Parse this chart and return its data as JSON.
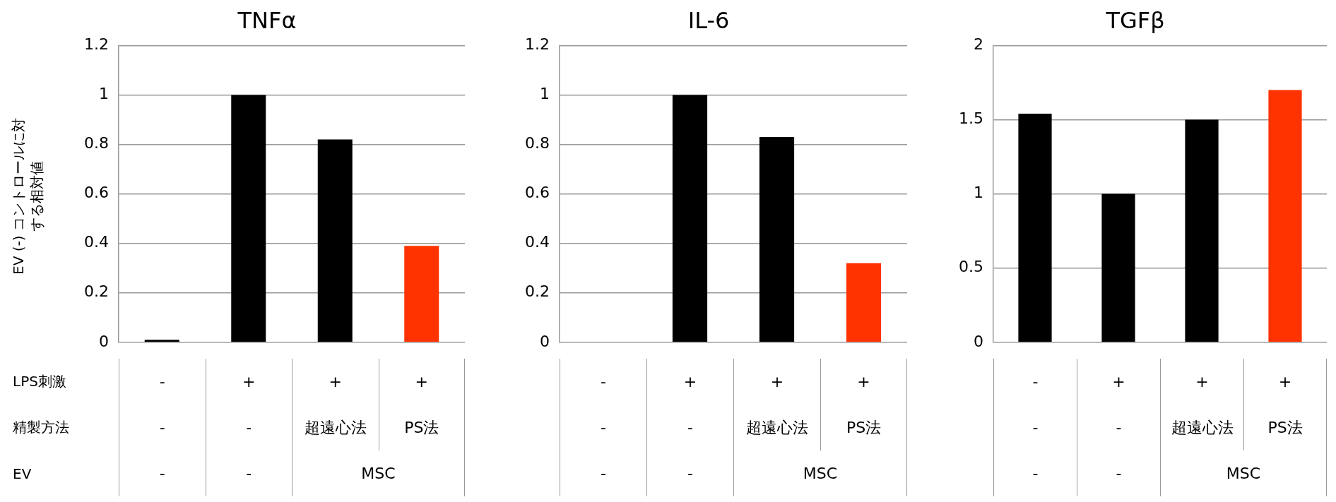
{
  "chart_data": [
    {
      "type": "bar",
      "title": "TNFα",
      "ylabel": "EV (-) コントロールに対する相対値",
      "categories": [
        null,
        null,
        null,
        null
      ],
      "values": [
        0.01,
        1,
        0.82,
        0.39
      ],
      "colors": [
        "#000000",
        "#000000",
        "#000000",
        "#ff3300"
      ],
      "ylim": [
        0,
        1.2
      ],
      "yticks": [
        0,
        0.2,
        0.4,
        0.6,
        0.8,
        1,
        1.2
      ],
      "grid": "y",
      "legend": false,
      "annotations": [
        "LPS刺激",
        "精製方法",
        "EV",
        "-",
        "+",
        "+",
        "+",
        "-",
        "-",
        "超遠心法",
        "PS法",
        "-",
        "-",
        "MSC"
      ]
    },
    {
      "type": "bar",
      "title": "IL-6",
      "categories": [
        null,
        null,
        null,
        null
      ],
      "values": [
        0,
        1,
        0.83,
        0.32
      ],
      "colors": [
        "#000000",
        "#000000",
        "#000000",
        "#ff3300"
      ],
      "ylim": [
        0,
        1.2
      ],
      "yticks": [
        0,
        0.2,
        0.4,
        0.6,
        0.8,
        1,
        1.2
      ],
      "grid": "y",
      "legend": false,
      "annotations": [
        "-",
        "+",
        "+",
        "+",
        "-",
        "-",
        "超遠心法",
        "PS法",
        "-",
        "-",
        "MSC"
      ]
    },
    {
      "type": "bar",
      "title": "TGFβ",
      "categories": [
        null,
        null,
        null,
        null
      ],
      "values": [
        1.54,
        1,
        1.5,
        1.7
      ],
      "colors": [
        "#000000",
        "#000000",
        "#000000",
        "#ff3300"
      ],
      "ylim": [
        0,
        2
      ],
      "yticks": [
        0,
        0.5,
        1,
        1.5,
        2
      ],
      "grid": "y",
      "legend": false,
      "annotations": [
        "-",
        "+",
        "+",
        "+",
        "-",
        "-",
        "超遠心法",
        "PS法",
        "-",
        "-",
        "MSC"
      ]
    }
  ]
}
